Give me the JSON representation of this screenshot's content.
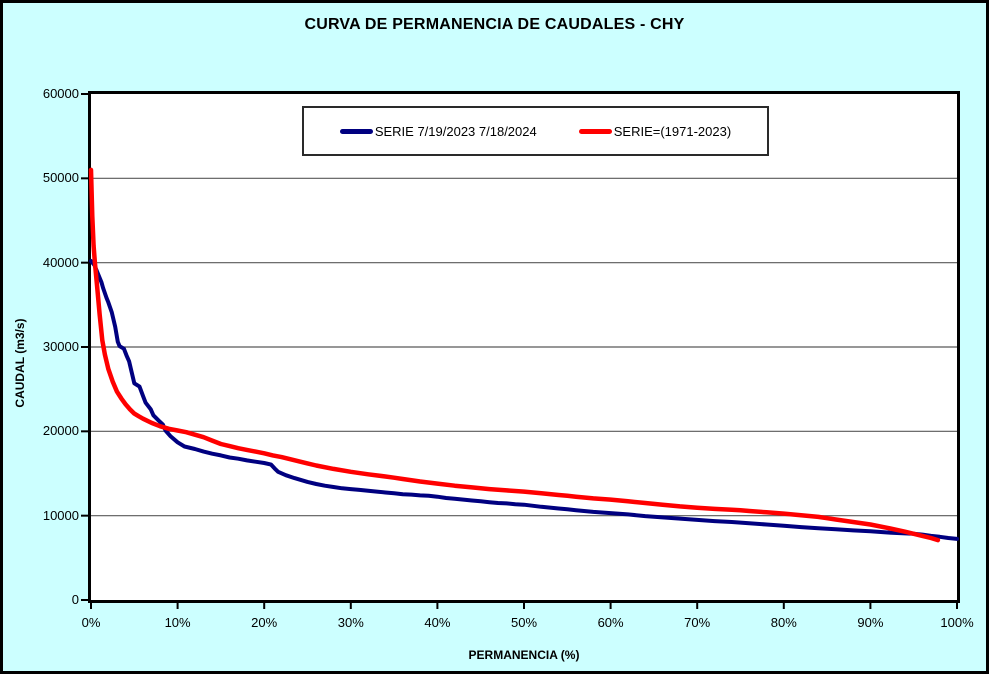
{
  "window": {
    "background": "#CCFFFF",
    "plot_background": "#FFFFFF"
  },
  "chart_data": {
    "type": "line",
    "title": "CURVA DE PERMANENCIA DE CAUDALES - CHY",
    "xlabel": "PERMANENCIA (%)",
    "ylabel": "CAUDAL (m3/s)",
    "xlim": [
      0,
      100
    ],
    "ylim": [
      0,
      60000
    ],
    "grid": "horizontal-only",
    "gridline_color": "#595959",
    "legend_position": "top-center-inside",
    "x_ticks": [
      {
        "value": 0,
        "label": "0%"
      },
      {
        "value": 10,
        "label": "10%"
      },
      {
        "value": 20,
        "label": "20%"
      },
      {
        "value": 30,
        "label": "30%"
      },
      {
        "value": 40,
        "label": "40%"
      },
      {
        "value": 50,
        "label": "50%"
      },
      {
        "value": 60,
        "label": "60%"
      },
      {
        "value": 70,
        "label": "70%"
      },
      {
        "value": 80,
        "label": "80%"
      },
      {
        "value": 90,
        "label": "90%"
      },
      {
        "value": 100,
        "label": "100%"
      }
    ],
    "y_ticks": [
      {
        "value": 0,
        "label": "0"
      },
      {
        "value": 10000,
        "label": "10000"
      },
      {
        "value": 20000,
        "label": "20000"
      },
      {
        "value": 30000,
        "label": "30000"
      },
      {
        "value": 40000,
        "label": "40000"
      },
      {
        "value": 50000,
        "label": "50000"
      },
      {
        "value": 60000,
        "label": "60000"
      }
    ],
    "series": [
      {
        "name": "SERIE 7/19/2023 7/18/2024",
        "color": "#000080",
        "width": 4,
        "points": [
          [
            0,
            40200
          ],
          [
            0.4,
            39700
          ],
          [
            0.8,
            38700
          ],
          [
            1.2,
            37700
          ],
          [
            1.4,
            37000
          ],
          [
            1.8,
            35800
          ],
          [
            2.0,
            35300
          ],
          [
            2.4,
            34100
          ],
          [
            2.8,
            32400
          ],
          [
            3.1,
            30600
          ],
          [
            3.3,
            30100
          ],
          [
            3.8,
            29800
          ],
          [
            4.1,
            29000
          ],
          [
            4.4,
            28300
          ],
          [
            4.7,
            27000
          ],
          [
            5.0,
            25700
          ],
          [
            5.6,
            25300
          ],
          [
            6.0,
            24200
          ],
          [
            6.3,
            23400
          ],
          [
            6.9,
            22600
          ],
          [
            7.2,
            21900
          ],
          [
            7.8,
            21300
          ],
          [
            8.3,
            20800
          ],
          [
            8.6,
            20100
          ],
          [
            9.2,
            19400
          ],
          [
            10,
            18700
          ],
          [
            10.8,
            18200
          ],
          [
            12,
            17900
          ],
          [
            13,
            17600
          ],
          [
            14,
            17350
          ],
          [
            15,
            17150
          ],
          [
            16,
            16900
          ],
          [
            17,
            16750
          ],
          [
            18,
            16550
          ],
          [
            19,
            16400
          ],
          [
            20,
            16250
          ],
          [
            20.8,
            16050
          ],
          [
            21.2,
            15600
          ],
          [
            21.6,
            15200
          ],
          [
            22.5,
            14800
          ],
          [
            23.5,
            14450
          ],
          [
            25,
            14000
          ],
          [
            26,
            13750
          ],
          [
            27,
            13550
          ],
          [
            28,
            13400
          ],
          [
            29,
            13250
          ],
          [
            30,
            13150
          ],
          [
            31,
            13050
          ],
          [
            32,
            12950
          ],
          [
            33,
            12850
          ],
          [
            34,
            12750
          ],
          [
            35,
            12650
          ],
          [
            36,
            12550
          ],
          [
            37,
            12500
          ],
          [
            38,
            12400
          ],
          [
            39,
            12350
          ],
          [
            40,
            12250
          ],
          [
            41,
            12100
          ],
          [
            42,
            12000
          ],
          [
            43,
            11900
          ],
          [
            44,
            11800
          ],
          [
            45,
            11700
          ],
          [
            46,
            11600
          ],
          [
            47,
            11500
          ],
          [
            48,
            11450
          ],
          [
            49,
            11350
          ],
          [
            50,
            11300
          ],
          [
            52,
            11050
          ],
          [
            54,
            10850
          ],
          [
            55,
            10750
          ],
          [
            56,
            10650
          ],
          [
            58,
            10450
          ],
          [
            60,
            10300
          ],
          [
            62,
            10150
          ],
          [
            64,
            9950
          ],
          [
            66,
            9800
          ],
          [
            68,
            9650
          ],
          [
            70,
            9500
          ],
          [
            72,
            9350
          ],
          [
            74,
            9250
          ],
          [
            76,
            9100
          ],
          [
            78,
            8950
          ],
          [
            80,
            8800
          ],
          [
            82,
            8650
          ],
          [
            84,
            8500
          ],
          [
            86,
            8400
          ],
          [
            88,
            8250
          ],
          [
            90,
            8150
          ],
          [
            92,
            8000
          ],
          [
            94,
            7900
          ],
          [
            95,
            7850
          ],
          [
            96,
            7750
          ],
          [
            97,
            7600
          ],
          [
            98,
            7500
          ],
          [
            99,
            7350
          ],
          [
            100,
            7250
          ]
        ]
      },
      {
        "name": "SERIE=(1971-2023)",
        "color": "#FF0000",
        "width": 4.5,
        "points": [
          [
            0,
            51000
          ],
          [
            0.15,
            45500
          ],
          [
            0.3,
            42000
          ],
          [
            0.45,
            40000
          ],
          [
            0.7,
            37200
          ],
          [
            1.0,
            33800
          ],
          [
            1.3,
            30800
          ],
          [
            1.6,
            29100
          ],
          [
            2.0,
            27400
          ],
          [
            2.5,
            25900
          ],
          [
            3.0,
            24700
          ],
          [
            3.5,
            23900
          ],
          [
            4.0,
            23200
          ],
          [
            4.5,
            22600
          ],
          [
            5.0,
            22100
          ],
          [
            5.5,
            21800
          ],
          [
            6.0,
            21500
          ],
          [
            7.0,
            21000
          ],
          [
            8.0,
            20600
          ],
          [
            9.0,
            20300
          ],
          [
            10,
            20100
          ],
          [
            11,
            19900
          ],
          [
            12,
            19600
          ],
          [
            13,
            19300
          ],
          [
            14,
            18900
          ],
          [
            15,
            18500
          ],
          [
            16,
            18250
          ],
          [
            17,
            18000
          ],
          [
            18,
            17800
          ],
          [
            19,
            17600
          ],
          [
            20,
            17400
          ],
          [
            21,
            17150
          ],
          [
            22,
            16950
          ],
          [
            23,
            16700
          ],
          [
            24,
            16450
          ],
          [
            25,
            16200
          ],
          [
            26,
            15950
          ],
          [
            28,
            15550
          ],
          [
            30,
            15200
          ],
          [
            32,
            14900
          ],
          [
            34,
            14650
          ],
          [
            35,
            14500
          ],
          [
            36,
            14350
          ],
          [
            38,
            14050
          ],
          [
            40,
            13800
          ],
          [
            42,
            13550
          ],
          [
            44,
            13350
          ],
          [
            45,
            13250
          ],
          [
            46,
            13150
          ],
          [
            48,
            13000
          ],
          [
            50,
            12850
          ],
          [
            52,
            12650
          ],
          [
            54,
            12450
          ],
          [
            55,
            12350
          ],
          [
            56,
            12250
          ],
          [
            58,
            12050
          ],
          [
            60,
            11900
          ],
          [
            62,
            11700
          ],
          [
            64,
            11500
          ],
          [
            65,
            11400
          ],
          [
            66,
            11300
          ],
          [
            68,
            11100
          ],
          [
            70,
            10950
          ],
          [
            72,
            10800
          ],
          [
            74,
            10700
          ],
          [
            75,
            10650
          ],
          [
            76,
            10550
          ],
          [
            78,
            10400
          ],
          [
            80,
            10250
          ],
          [
            82,
            10050
          ],
          [
            84,
            9850
          ],
          [
            85,
            9700
          ],
          [
            86,
            9550
          ],
          [
            88,
            9250
          ],
          [
            90,
            8950
          ],
          [
            92,
            8550
          ],
          [
            94,
            8100
          ],
          [
            95,
            7850
          ],
          [
            96,
            7600
          ],
          [
            97,
            7350
          ],
          [
            97.8,
            7100
          ]
        ]
      }
    ]
  }
}
